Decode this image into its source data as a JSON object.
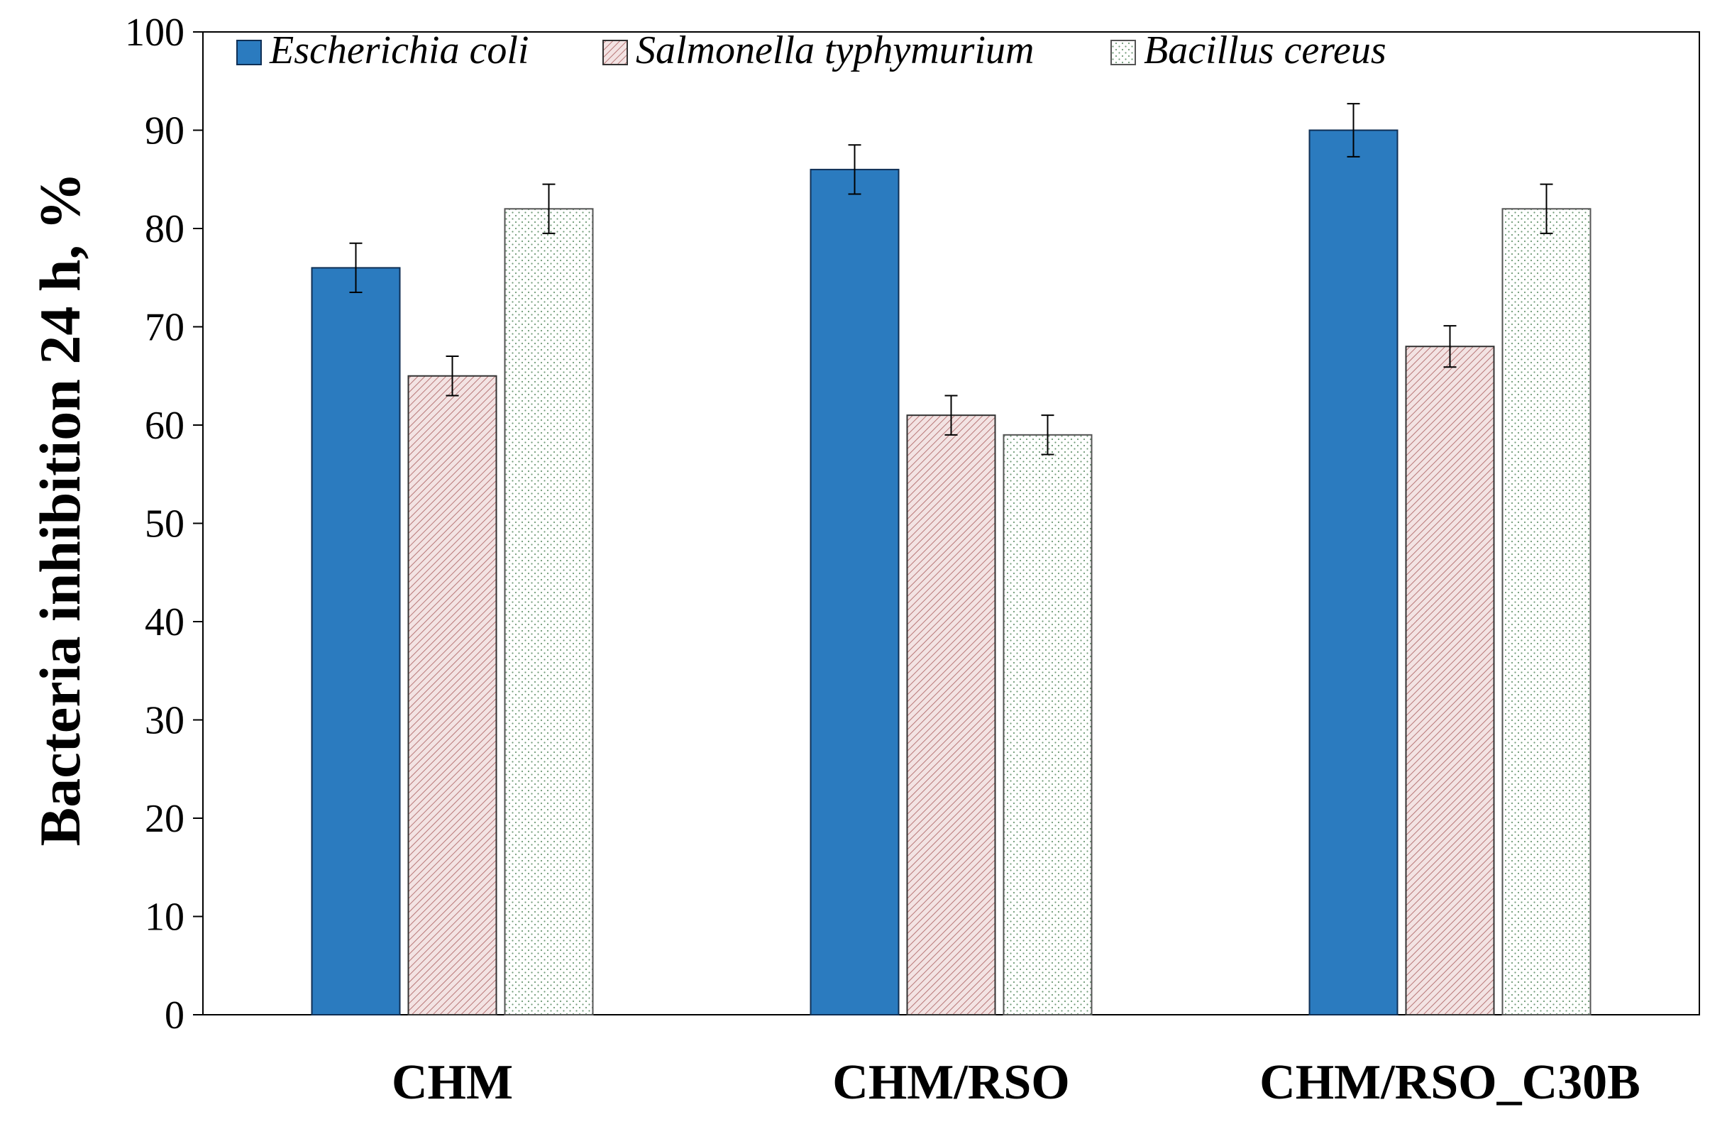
{
  "chart_data": {
    "type": "bar",
    "title": "",
    "xlabel": "",
    "ylabel": "Bacteria inhibition 24 h, %",
    "ylim": [
      0,
      100
    ],
    "yticks": [
      0,
      10,
      20,
      30,
      40,
      50,
      60,
      70,
      80,
      90,
      100
    ],
    "categories": [
      "CHM",
      "CHM/RSO",
      "CHM/RSO_C30B"
    ],
    "series": [
      {
        "name": "Escherichia coli",
        "values": [
          76,
          86,
          90
        ],
        "errors": [
          2.5,
          2.5,
          2.7
        ],
        "color": "#2b7bbf",
        "pattern": "solid"
      },
      {
        "name": "Salmonella typhymurium",
        "values": [
          65,
          61,
          68
        ],
        "errors": [
          2.0,
          2.0,
          2.1
        ],
        "color": "#e9cfcf",
        "pattern": "hatch"
      },
      {
        "name": "Bacillus cereus",
        "values": [
          82,
          59,
          82
        ],
        "errors": [
          2.5,
          2.0,
          2.5
        ],
        "color": "#f2f7f2",
        "pattern": "dots"
      }
    ],
    "legend_position": "top-left",
    "grid": false
  }
}
